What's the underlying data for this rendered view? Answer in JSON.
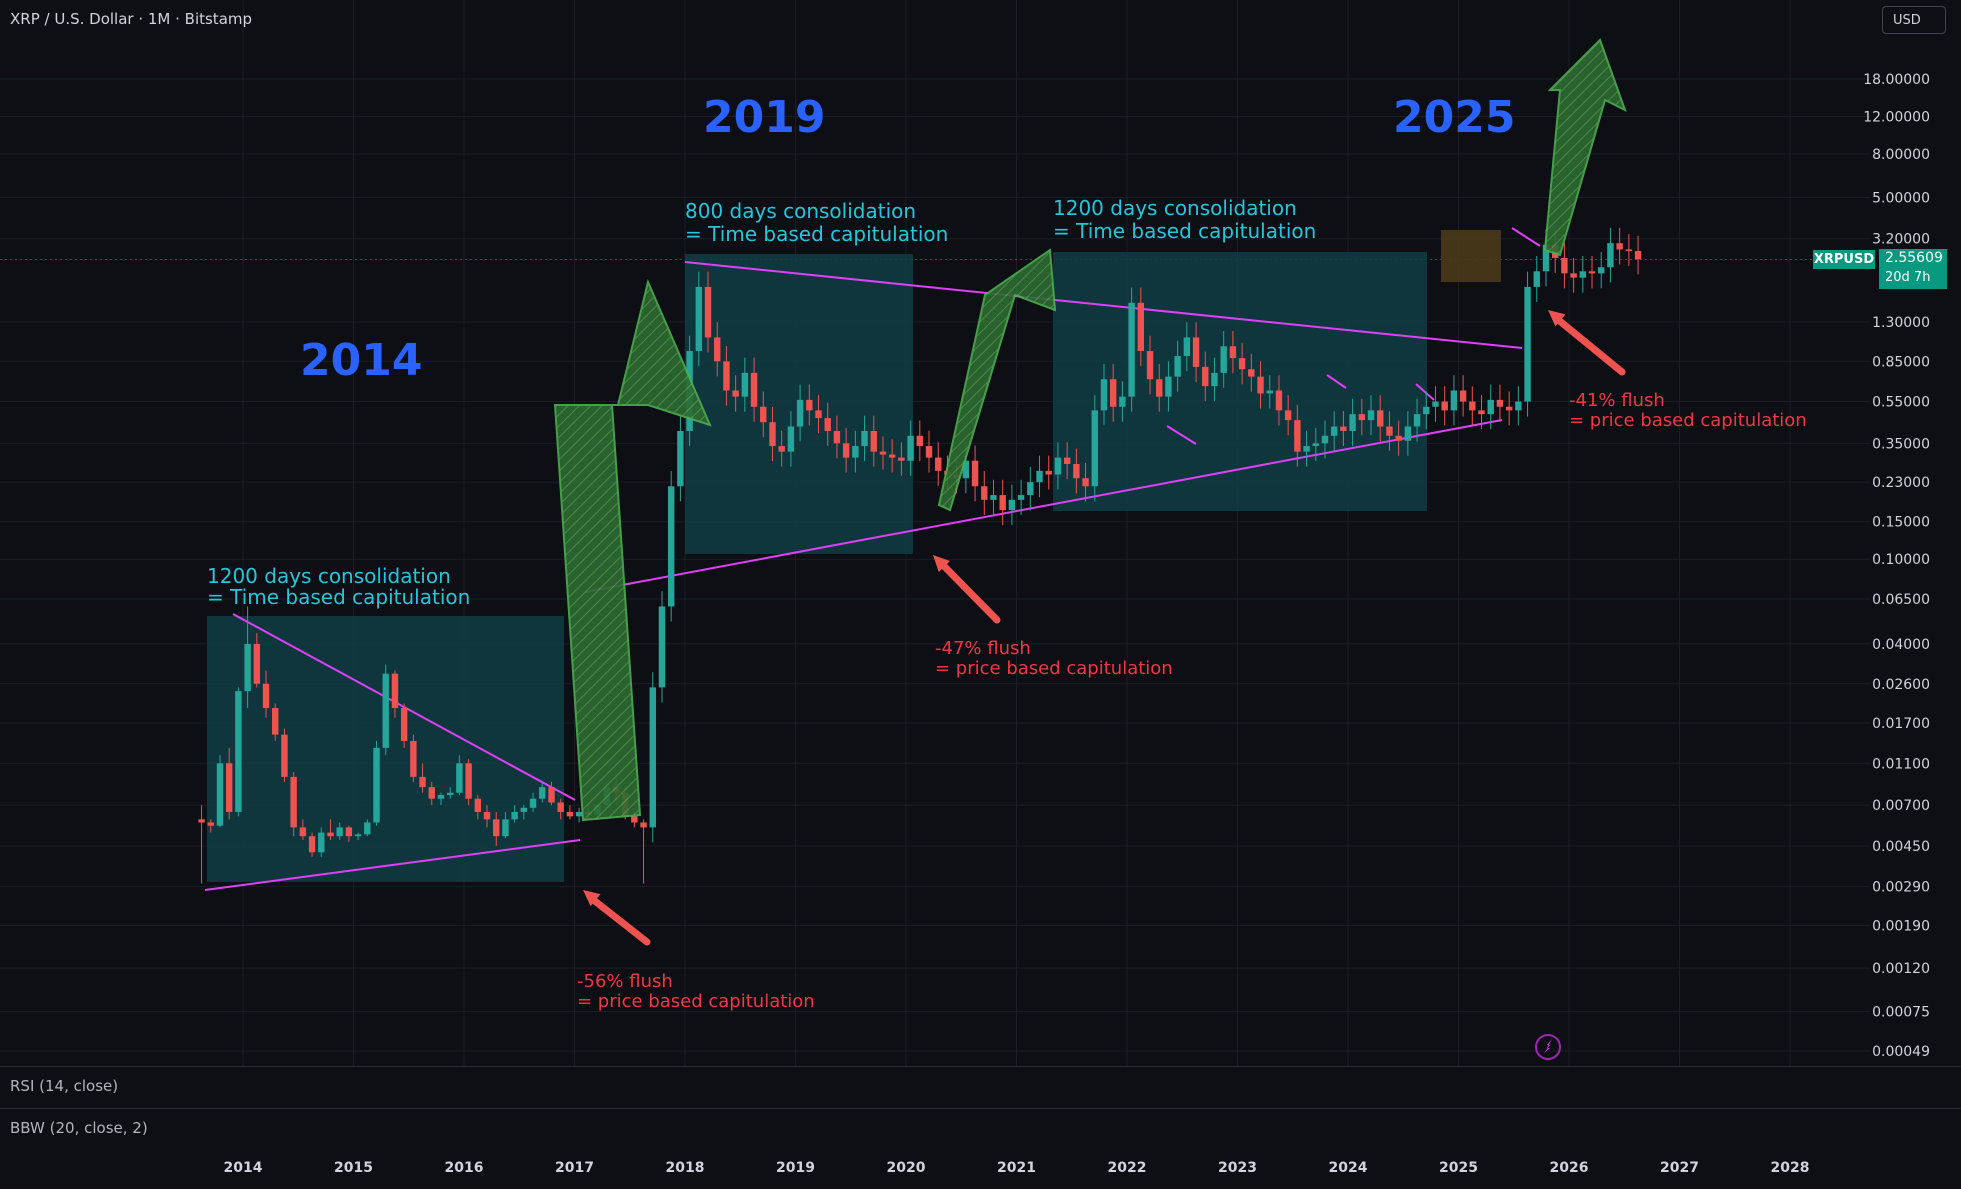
{
  "header": {
    "title": "XRP / U.S. Dollar · 1M · Bitstamp",
    "currency_button": "USD"
  },
  "price_tag": {
    "symbol": "XRPUSD",
    "price": "2.55609",
    "countdown": "20d 7h"
  },
  "indicators": [
    {
      "label": "RSI (14, close)"
    },
    {
      "label": "BBW (20, close, 2)"
    }
  ],
  "colors": {
    "background": "#0e0f14",
    "up": "#26a69a",
    "down": "#ef5350",
    "trendline": "#e040fb",
    "box": "#0f3d44",
    "arrow": "#3d8b3a",
    "year_label": "#2962ff",
    "cyan_text": "#26c6da",
    "red_text": "#f23645"
  },
  "annotations": {
    "years": [
      "2014",
      "2019",
      "2025"
    ],
    "consolidation_2014": [
      "1200 days consolidation",
      "= Time based capitulation"
    ],
    "consolidation_2019": [
      "800 days consolidation",
      "= Time based capitulation"
    ],
    "consolidation_2025": [
      "1200 days consolidation",
      "= Time based capitulation"
    ],
    "flush_56": [
      "-56% flush",
      "= price based capitulation"
    ],
    "flush_47": [
      "-47% flush",
      "= price based capitulation"
    ],
    "flush_41": [
      "-41% flush",
      "= price based capitulation"
    ]
  },
  "chart_data": {
    "type": "candlestick",
    "title": "XRP / U.S. Dollar · 1M · Bitstamp",
    "y_scale": "log",
    "y_tick_labels": [
      "18.00000",
      "12.00000",
      "8.00000",
      "5.00000",
      "3.20000",
      "1.30000",
      "0.85000",
      "0.55000",
      "0.35000",
      "0.23000",
      "0.15000",
      "0.10000",
      "0.06500",
      "0.04000",
      "0.02600",
      "0.01700",
      "0.01100",
      "0.00700",
      "0.00450",
      "0.00290",
      "0.00190",
      "0.00120",
      "0.00075",
      "0.00049"
    ],
    "x_tick_labels": [
      "2014",
      "2015",
      "2016",
      "2017",
      "2018",
      "2019",
      "2020",
      "2021",
      "2022",
      "2023",
      "2024",
      "2025",
      "2026",
      "2027",
      "2028"
    ],
    "x_range": [
      "2013-08",
      "2028-12"
    ],
    "y_range": [
      0.00049,
      30
    ],
    "grid": true,
    "current_price": 2.55609,
    "candles_ohlc": [
      [
        0.006,
        0.007,
        0.003,
        0.0058
      ],
      [
        0.0058,
        0.006,
        0.0052,
        0.0056
      ],
      [
        0.0056,
        0.012,
        0.0055,
        0.011
      ],
      [
        0.011,
        0.013,
        0.006,
        0.0065
      ],
      [
        0.0065,
        0.025,
        0.0062,
        0.024
      ],
      [
        0.024,
        0.06,
        0.02,
        0.04
      ],
      [
        0.04,
        0.045,
        0.025,
        0.026
      ],
      [
        0.026,
        0.03,
        0.018,
        0.02
      ],
      [
        0.02,
        0.021,
        0.014,
        0.015
      ],
      [
        0.015,
        0.016,
        0.009,
        0.0095
      ],
      [
        0.0095,
        0.01,
        0.005,
        0.0055
      ],
      [
        0.0055,
        0.006,
        0.0048,
        0.005
      ],
      [
        0.005,
        0.0052,
        0.004,
        0.0042
      ],
      [
        0.0042,
        0.0055,
        0.004,
        0.0052
      ],
      [
        0.0052,
        0.006,
        0.0048,
        0.005
      ],
      [
        0.005,
        0.0058,
        0.0048,
        0.0055
      ],
      [
        0.0055,
        0.0056,
        0.0047,
        0.005
      ],
      [
        0.005,
        0.0052,
        0.0048,
        0.0051
      ],
      [
        0.0051,
        0.006,
        0.005,
        0.0058
      ],
      [
        0.0058,
        0.014,
        0.0056,
        0.013
      ],
      [
        0.013,
        0.032,
        0.012,
        0.029
      ],
      [
        0.029,
        0.03,
        0.018,
        0.02
      ],
      [
        0.02,
        0.021,
        0.013,
        0.014
      ],
      [
        0.014,
        0.015,
        0.009,
        0.0095
      ],
      [
        0.0095,
        0.011,
        0.008,
        0.0085
      ],
      [
        0.0085,
        0.009,
        0.007,
        0.0075
      ],
      [
        0.0075,
        0.008,
        0.007,
        0.0078
      ],
      [
        0.0078,
        0.0085,
        0.0075,
        0.008
      ],
      [
        0.008,
        0.012,
        0.0078,
        0.011
      ],
      [
        0.011,
        0.0115,
        0.007,
        0.0075
      ],
      [
        0.0075,
        0.0078,
        0.006,
        0.0065
      ],
      [
        0.0065,
        0.007,
        0.0055,
        0.006
      ],
      [
        0.006,
        0.0065,
        0.0045,
        0.005
      ],
      [
        0.005,
        0.0065,
        0.0049,
        0.006
      ],
      [
        0.006,
        0.007,
        0.0058,
        0.0065
      ],
      [
        0.0065,
        0.007,
        0.006,
        0.0068
      ],
      [
        0.0068,
        0.008,
        0.0065,
        0.0075
      ],
      [
        0.0075,
        0.009,
        0.0072,
        0.0085
      ],
      [
        0.0085,
        0.009,
        0.007,
        0.0072
      ],
      [
        0.0072,
        0.0075,
        0.006,
        0.0065
      ],
      [
        0.0065,
        0.007,
        0.006,
        0.0062
      ],
      [
        0.0062,
        0.0068,
        0.0058,
        0.0065
      ],
      [
        0.0065,
        0.007,
        0.006,
        0.0063
      ],
      [
        0.0063,
        0.0072,
        0.006,
        0.007
      ],
      [
        0.007,
        0.009,
        0.0068,
        0.0085
      ],
      [
        0.0085,
        0.0095,
        0.0075,
        0.008
      ],
      [
        0.008,
        0.0085,
        0.006,
        0.0062
      ],
      [
        0.0062,
        0.0065,
        0.0055,
        0.0058
      ],
      [
        0.0058,
        0.006,
        0.003,
        0.0055
      ]
    ]
  }
}
